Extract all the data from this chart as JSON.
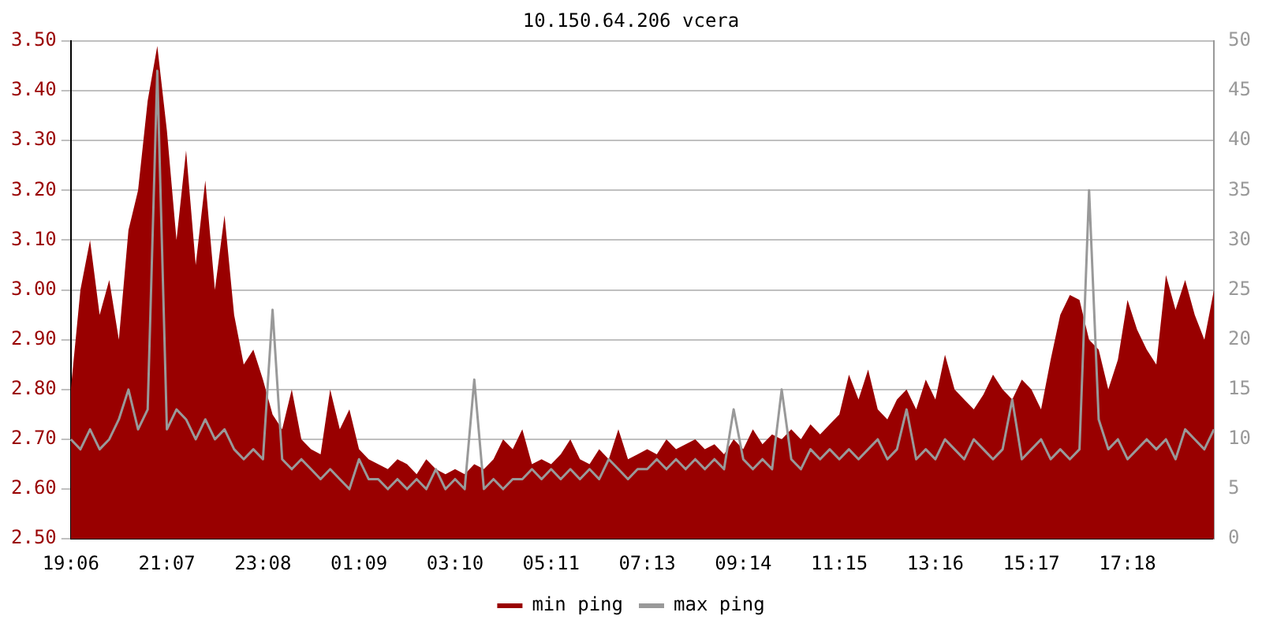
{
  "chart_data": {
    "type": "area",
    "title": "10.150.64.206 vcera",
    "categories": [
      "19:06",
      null,
      null,
      null,
      null,
      null,
      null,
      null,
      null,
      null,
      "21:07",
      null,
      null,
      null,
      null,
      null,
      null,
      null,
      null,
      null,
      "23:08",
      null,
      null,
      null,
      null,
      null,
      null,
      null,
      null,
      null,
      "01:09",
      null,
      null,
      null,
      null,
      null,
      null,
      null,
      null,
      null,
      "03:10",
      null,
      null,
      null,
      null,
      null,
      null,
      null,
      null,
      null,
      "05:11",
      null,
      null,
      null,
      null,
      null,
      null,
      null,
      null,
      null,
      "07:13",
      null,
      null,
      null,
      null,
      null,
      null,
      null,
      null,
      null,
      "09:14",
      null,
      null,
      null,
      null,
      null,
      null,
      null,
      null,
      null,
      "11:15",
      null,
      null,
      null,
      null,
      null,
      null,
      null,
      null,
      null,
      "13:16",
      null,
      null,
      null,
      null,
      null,
      null,
      null,
      null,
      null,
      "15:17",
      null,
      null,
      null,
      null,
      null,
      null,
      null,
      null,
      null,
      "17:18",
      null,
      null,
      null,
      null,
      null,
      null,
      null,
      null,
      null
    ],
    "series": [
      {
        "name": "min ping",
        "color": "#990000",
        "values": [
          2.8,
          3.0,
          3.1,
          2.95,
          3.02,
          2.9,
          3.12,
          3.2,
          3.38,
          3.49,
          3.32,
          3.1,
          3.28,
          3.05,
          3.22,
          3.0,
          3.15,
          2.95,
          2.85,
          2.88,
          2.82,
          2.75,
          2.72,
          2.8,
          2.7,
          2.68,
          2.67,
          2.8,
          2.72,
          2.76,
          2.68,
          2.66,
          2.65,
          2.64,
          2.66,
          2.65,
          2.63,
          2.66,
          2.64,
          2.63,
          2.64,
          2.63,
          2.65,
          2.64,
          2.66,
          2.7,
          2.68,
          2.72,
          2.65,
          2.66,
          2.65,
          2.67,
          2.7,
          2.66,
          2.65,
          2.68,
          2.66,
          2.72,
          2.66,
          2.67,
          2.68,
          2.67,
          2.7,
          2.68,
          2.69,
          2.7,
          2.68,
          2.69,
          2.67,
          2.7,
          2.68,
          2.72,
          2.69,
          2.71,
          2.7,
          2.72,
          2.7,
          2.73,
          2.71,
          2.73,
          2.75,
          2.83,
          2.78,
          2.84,
          2.76,
          2.74,
          2.78,
          2.8,
          2.76,
          2.82,
          2.78,
          2.87,
          2.8,
          2.78,
          2.76,
          2.79,
          2.83,
          2.8,
          2.78,
          2.82,
          2.8,
          2.76,
          2.86,
          2.95,
          2.99,
          2.98,
          2.9,
          2.88,
          2.8,
          2.86,
          2.98,
          2.92,
          2.88,
          2.85,
          3.03,
          2.96,
          3.02,
          2.95,
          2.9,
          3.0
        ]
      },
      {
        "name": "max ping",
        "type": "line",
        "axis": "y2",
        "color": "#999999",
        "values": [
          10,
          9,
          11,
          9,
          10,
          12,
          15,
          11,
          13,
          47,
          11,
          13,
          12,
          10,
          12,
          10,
          11,
          9,
          8,
          9,
          8,
          23,
          8,
          7,
          8,
          7,
          6,
          7,
          6,
          5,
          8,
          6,
          6,
          5,
          6,
          5,
          6,
          5,
          7,
          5,
          6,
          5,
          16,
          5,
          6,
          5,
          6,
          6,
          7,
          6,
          7,
          6,
          7,
          6,
          7,
          6,
          8,
          7,
          6,
          7,
          7,
          8,
          7,
          8,
          7,
          8,
          7,
          8,
          7,
          13,
          8,
          7,
          8,
          7,
          15,
          8,
          7,
          9,
          8,
          9,
          8,
          9,
          8,
          9,
          10,
          8,
          9,
          13,
          8,
          9,
          8,
          10,
          9,
          8,
          10,
          9,
          8,
          9,
          14,
          8,
          9,
          10,
          8,
          9,
          8,
          9,
          35,
          12,
          9,
          10,
          8,
          9,
          10,
          9,
          10,
          8,
          11,
          10,
          9,
          11
        ]
      }
    ],
    "ylim": [
      2.5,
      3.5
    ],
    "yticks": [
      {
        "value": 2.5,
        "label": "2.50"
      },
      {
        "value": 2.6,
        "label": "2.60"
      },
      {
        "value": 2.7,
        "label": "2.70"
      },
      {
        "value": 2.8,
        "label": "2.80"
      },
      {
        "value": 2.9,
        "label": "2.90"
      },
      {
        "value": 3.0,
        "label": "3.00"
      },
      {
        "value": 3.1,
        "label": "3.10"
      },
      {
        "value": 3.2,
        "label": "3.20"
      },
      {
        "value": 3.3,
        "label": "3.30"
      },
      {
        "value": 3.4,
        "label": "3.40"
      },
      {
        "value": 3.5,
        "label": "3.50"
      }
    ],
    "y2lim": [
      0,
      50
    ],
    "y2ticks": [
      0,
      5,
      10,
      15,
      20,
      25,
      30,
      35,
      40,
      45,
      50
    ],
    "grid": "y",
    "legend": "bottom"
  }
}
